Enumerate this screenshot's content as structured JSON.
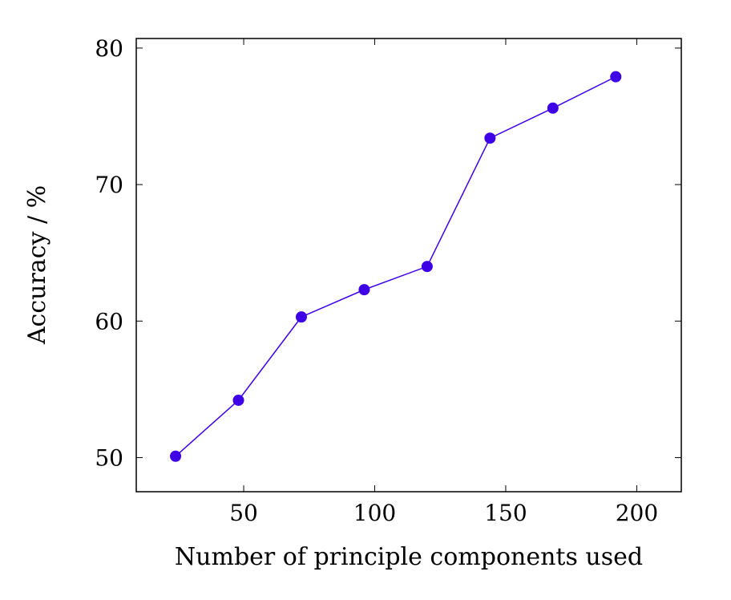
{
  "chart_data": {
    "type": "line",
    "title": "",
    "xlabel": "Number of principle components used",
    "ylabel": "Accuracy / %",
    "x": [
      24,
      48,
      72,
      96,
      120,
      144,
      168,
      192
    ],
    "series": [
      {
        "values": [
          50.1,
          54.2,
          60.3,
          62.3,
          64.0,
          73.4,
          75.6,
          77.9
        ],
        "color": "#3e00e6"
      }
    ],
    "xlim": [
      9,
      217
    ],
    "ylim": [
      47.5,
      80.7
    ],
    "xticks": [
      50,
      100,
      150,
      200
    ],
    "yticks": [
      50,
      60,
      70,
      80
    ],
    "xtick_labels": [
      "50",
      "100",
      "150",
      "200"
    ],
    "ytick_labels": [
      "50",
      "60",
      "70",
      "80"
    ],
    "grid": false,
    "legend": "none"
  }
}
